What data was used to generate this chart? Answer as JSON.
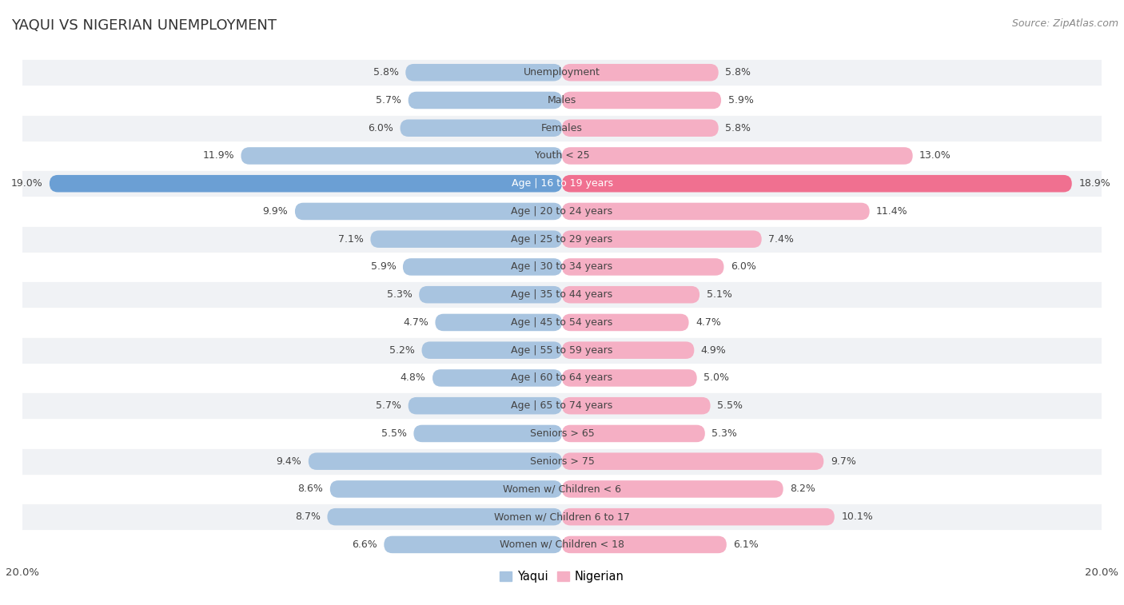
{
  "title": "YAQUI VS NIGERIAN UNEMPLOYMENT",
  "source": "Source: ZipAtlas.com",
  "categories": [
    "Unemployment",
    "Males",
    "Females",
    "Youth < 25",
    "Age | 16 to 19 years",
    "Age | 20 to 24 years",
    "Age | 25 to 29 years",
    "Age | 30 to 34 years",
    "Age | 35 to 44 years",
    "Age | 45 to 54 years",
    "Age | 55 to 59 years",
    "Age | 60 to 64 years",
    "Age | 65 to 74 years",
    "Seniors > 65",
    "Seniors > 75",
    "Women w/ Children < 6",
    "Women w/ Children 6 to 17",
    "Women w/ Children < 18"
  ],
  "yaqui": [
    5.8,
    5.7,
    6.0,
    11.9,
    19.0,
    9.9,
    7.1,
    5.9,
    5.3,
    4.7,
    5.2,
    4.8,
    5.7,
    5.5,
    9.4,
    8.6,
    8.7,
    6.6
  ],
  "nigerian": [
    5.8,
    5.9,
    5.8,
    13.0,
    18.9,
    11.4,
    7.4,
    6.0,
    5.1,
    4.7,
    4.9,
    5.0,
    5.5,
    5.3,
    9.7,
    8.2,
    10.1,
    6.1
  ],
  "yaqui_color": "#a8c4e0",
  "nigerian_color": "#f5afc4",
  "yaqui_highlight_color": "#6b9fd4",
  "nigerian_highlight_color": "#f07090",
  "axis_limit": 20.0,
  "bar_height": 0.62,
  "bg_color": "#ffffff",
  "row_bg_odd": "#f0f2f5",
  "row_bg_even": "#ffffff",
  "label_color": "#444444",
  "title_color": "#333333",
  "source_color": "#888888",
  "legend_yaqui": "Yaqui",
  "legend_nigerian": "Nigerian",
  "label_fontsize": 9.0,
  "title_fontsize": 13.0,
  "source_fontsize": 9.0,
  "cat_fontsize": 9.0
}
